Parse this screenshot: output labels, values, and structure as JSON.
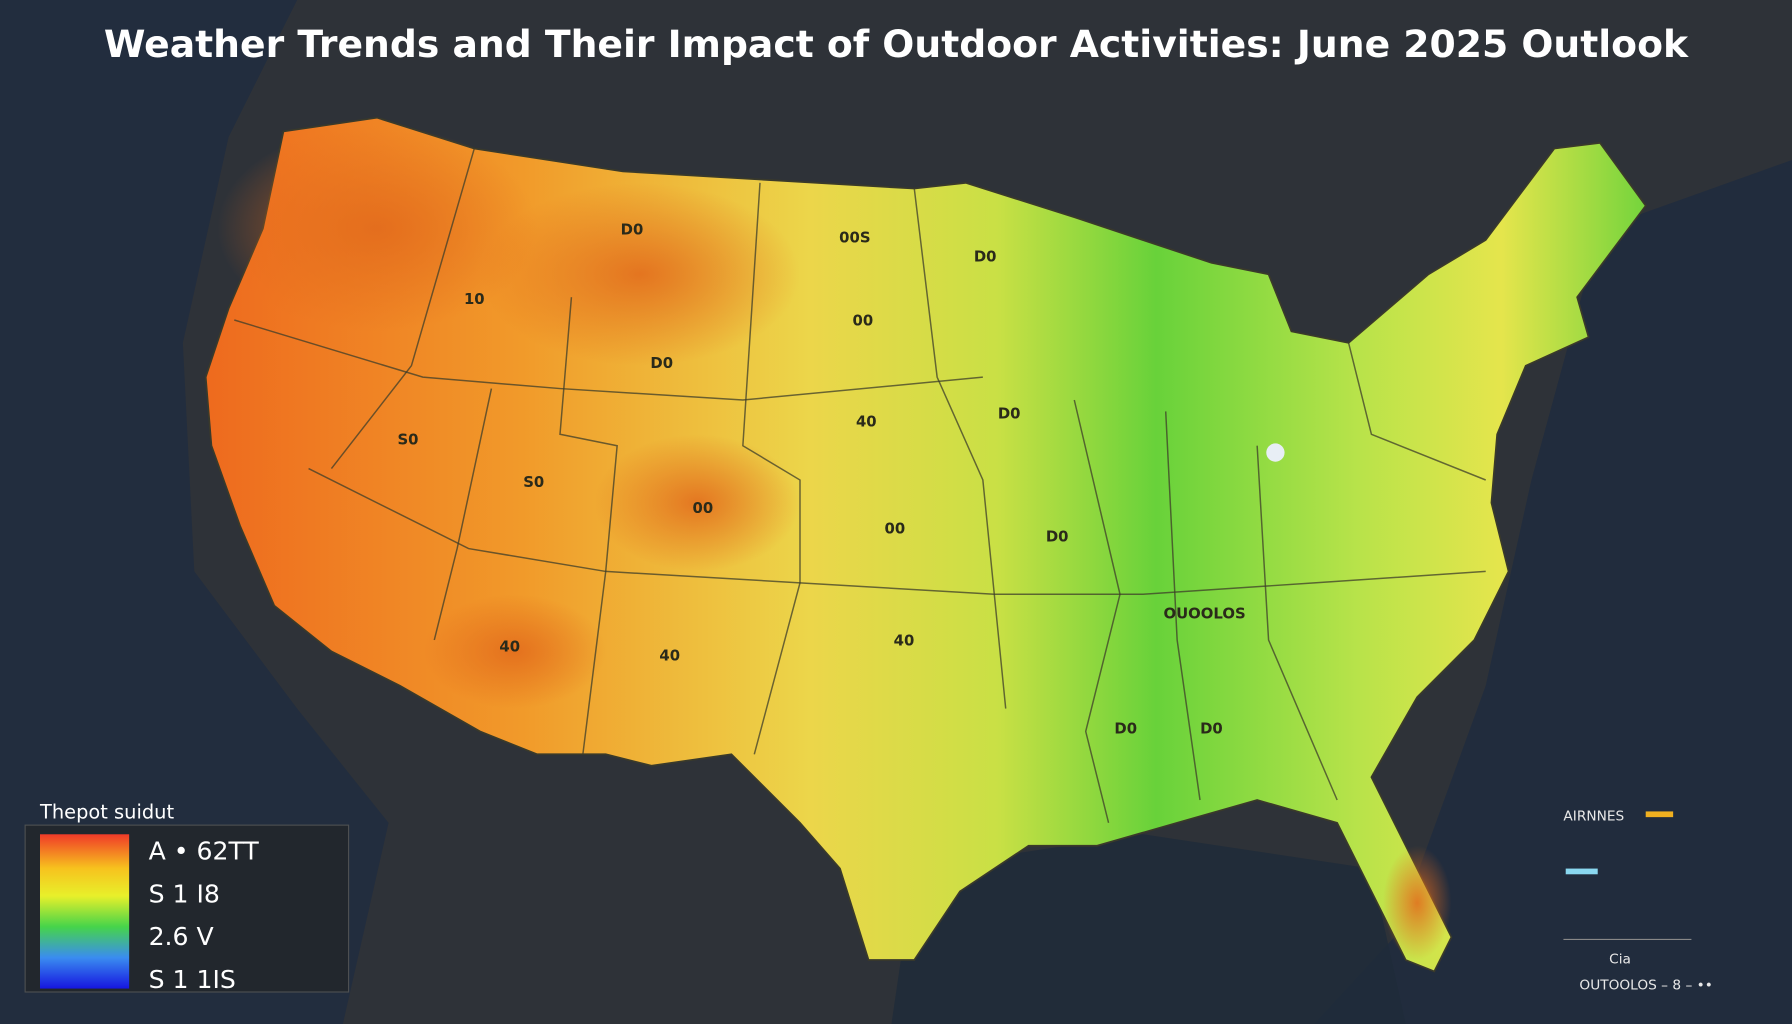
{
  "header": {
    "title": "Weather Trends and Their Impact of Outdoor Activities: June 2025 Outlook"
  },
  "map_labels": [
    "D0",
    "00S",
    "D0",
    "10",
    "00",
    "D0",
    "40",
    "D0",
    "S0",
    "S0",
    "00",
    "00",
    "D0",
    "OUOOLOS",
    "40",
    "40",
    "40",
    "D0",
    "D0"
  ],
  "legend": {
    "title": "Thepot suidut",
    "items": [
      "A • 62TT",
      "S 1 I8",
      "2.6 V",
      "S 1 1IS"
    ]
  },
  "inset": {
    "title": "AIRNNES",
    "labels": [
      "Cia",
      "OUTOOLOS – 8 – ••"
    ]
  }
}
